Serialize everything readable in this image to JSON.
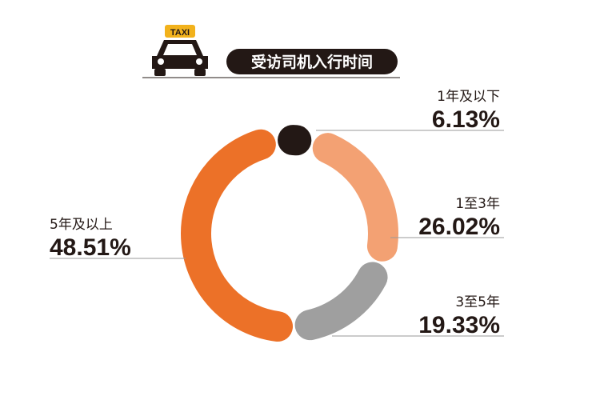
{
  "chart_data": {
    "type": "donut",
    "title": "受访司机入行时间",
    "icon_label": "TAXI",
    "categories": [
      "1年及以下",
      "1至3年",
      "3至5年",
      "5年及以上"
    ],
    "values": [
      6.13,
      26.02,
      19.33,
      48.51
    ],
    "value_labels": [
      "6.13%",
      "26.02%",
      "19.33%",
      "48.51%"
    ],
    "colors": [
      "#231815",
      "#f3a173",
      "#9f9f9f",
      "#ec7128"
    ]
  }
}
